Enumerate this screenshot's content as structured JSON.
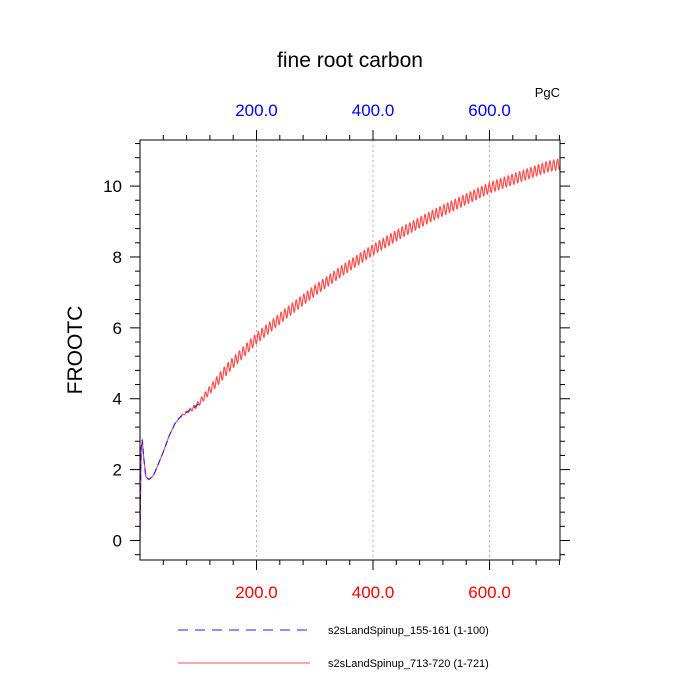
{
  "chart_data": {
    "type": "line",
    "title": "fine root carbon",
    "units": "PgC",
    "ylabel": "FROOTC",
    "xlabel": "",
    "xlim": [
      0,
      721
    ],
    "ylim": [
      -0.55,
      11.3
    ],
    "grid": "vertical dotted at top-axis ticks",
    "x_ticks_bottom": [
      {
        "value": 200,
        "label": "200.0"
      },
      {
        "value": 400,
        "label": "400.0"
      },
      {
        "value": 600,
        "label": "600.0"
      }
    ],
    "x_ticks_top": [
      {
        "value": 200,
        "label": "200.0"
      },
      {
        "value": 400,
        "label": "400.0"
      },
      {
        "value": 600,
        "label": "600.0"
      }
    ],
    "y_ticks": [
      {
        "value": 0,
        "label": "0"
      },
      {
        "value": 2,
        "label": "2"
      },
      {
        "value": 4,
        "label": "4"
      },
      {
        "value": 6,
        "label": "6"
      },
      {
        "value": 8,
        "label": "8"
      },
      {
        "value": 10,
        "label": "10"
      }
    ],
    "colors": {
      "bottom_tick_labels": "#ff0000",
      "top_tick_labels": "#0000ff",
      "grid": "#b0b0b0"
    },
    "series": [
      {
        "name": "s2sLandSpinup_155-161 (1-100)",
        "color": "#1e1eff",
        "dash": "dashed",
        "x": [
          0,
          1,
          2,
          4,
          6,
          10,
          15,
          20,
          25,
          30,
          40,
          50,
          60,
          70,
          80,
          90,
          100
        ],
        "y": [
          0.0,
          1.5,
          2.6,
          2.85,
          2.4,
          1.8,
          1.72,
          1.78,
          1.9,
          2.1,
          2.5,
          2.95,
          3.3,
          3.5,
          3.62,
          3.72,
          3.85
        ]
      },
      {
        "name": "s2sLandSpinup_713-720 (1-721)",
        "color": "#ff5050",
        "dash": "solid",
        "x": [
          0,
          1,
          2,
          4,
          6,
          10,
          15,
          20,
          25,
          30,
          40,
          50,
          60,
          70,
          80,
          90,
          100,
          150,
          200,
          250,
          300,
          350,
          400,
          450,
          500,
          550,
          600,
          650,
          700,
          721
        ],
        "y": [
          0.0,
          1.5,
          2.6,
          2.85,
          2.4,
          1.8,
          1.72,
          1.78,
          1.9,
          2.1,
          2.5,
          2.95,
          3.3,
          3.5,
          3.62,
          3.72,
          3.85,
          4.85,
          5.7,
          6.4,
          7.05,
          7.65,
          8.2,
          8.7,
          9.15,
          9.55,
          9.95,
          10.25,
          10.55,
          10.62
        ],
        "seasonal_amplitude": 0.15
      }
    ],
    "legend_position": "bottom"
  }
}
